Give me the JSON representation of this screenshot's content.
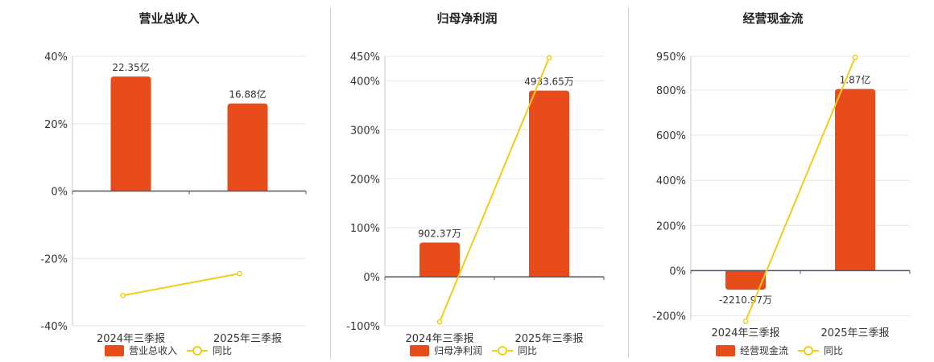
{
  "colors": {
    "bar": "#e84c1b",
    "line": "#f2cc1a",
    "grid": "#e6e6ef",
    "axis": "#555566"
  },
  "chart_data": [
    {
      "type": "bar",
      "title": "营业总收入",
      "categories": [
        "2024年三季报",
        "2025年三季报"
      ],
      "bar_values_pct_axis": [
        34,
        26
      ],
      "bar_labels": [
        "22.35亿",
        "16.88亿"
      ],
      "series": [
        {
          "name": "营业总收入",
          "type": "bar"
        },
        {
          "name": "同比",
          "type": "line",
          "values": [
            -31,
            -24.5
          ]
        }
      ],
      "y_ticks": [
        "40%",
        "20%",
        "0%",
        "-20%",
        "-40%"
      ],
      "ylim": [
        -40,
        40
      ],
      "legend": "bottom"
    },
    {
      "type": "bar",
      "title": "归母净利润",
      "categories": [
        "2024年三季报",
        "2025年三季报"
      ],
      "bar_values_pct_axis": [
        70,
        380
      ],
      "bar_labels": [
        "902.37万",
        "4933.65万"
      ],
      "series": [
        {
          "name": "归母净利润",
          "type": "bar"
        },
        {
          "name": "同比",
          "type": "line",
          "values": [
            -92,
            447
          ]
        }
      ],
      "y_ticks": [
        "450%",
        "400%",
        "300%",
        "200%",
        "100%",
        "0%",
        "-100%"
      ],
      "ylim": [
        -100,
        450
      ],
      "legend": "bottom"
    },
    {
      "type": "bar",
      "title": "经营现金流",
      "categories": [
        "2024年三季报",
        "2025年三季报"
      ],
      "bar_values_pct_axis": [
        -85,
        805
      ],
      "bar_labels": [
        "-2210.97万",
        "1.87亿"
      ],
      "series": [
        {
          "name": "经营现金流",
          "type": "bar"
        },
        {
          "name": "同比",
          "type": "line",
          "values": [
            -225,
            945
          ]
        }
      ],
      "y_ticks": [
        "950%",
        "800%",
        "600%",
        "400%",
        "200%",
        "0%",
        "-200%"
      ],
      "ylim": [
        -220,
        950
      ],
      "legend": "bottom"
    }
  ]
}
